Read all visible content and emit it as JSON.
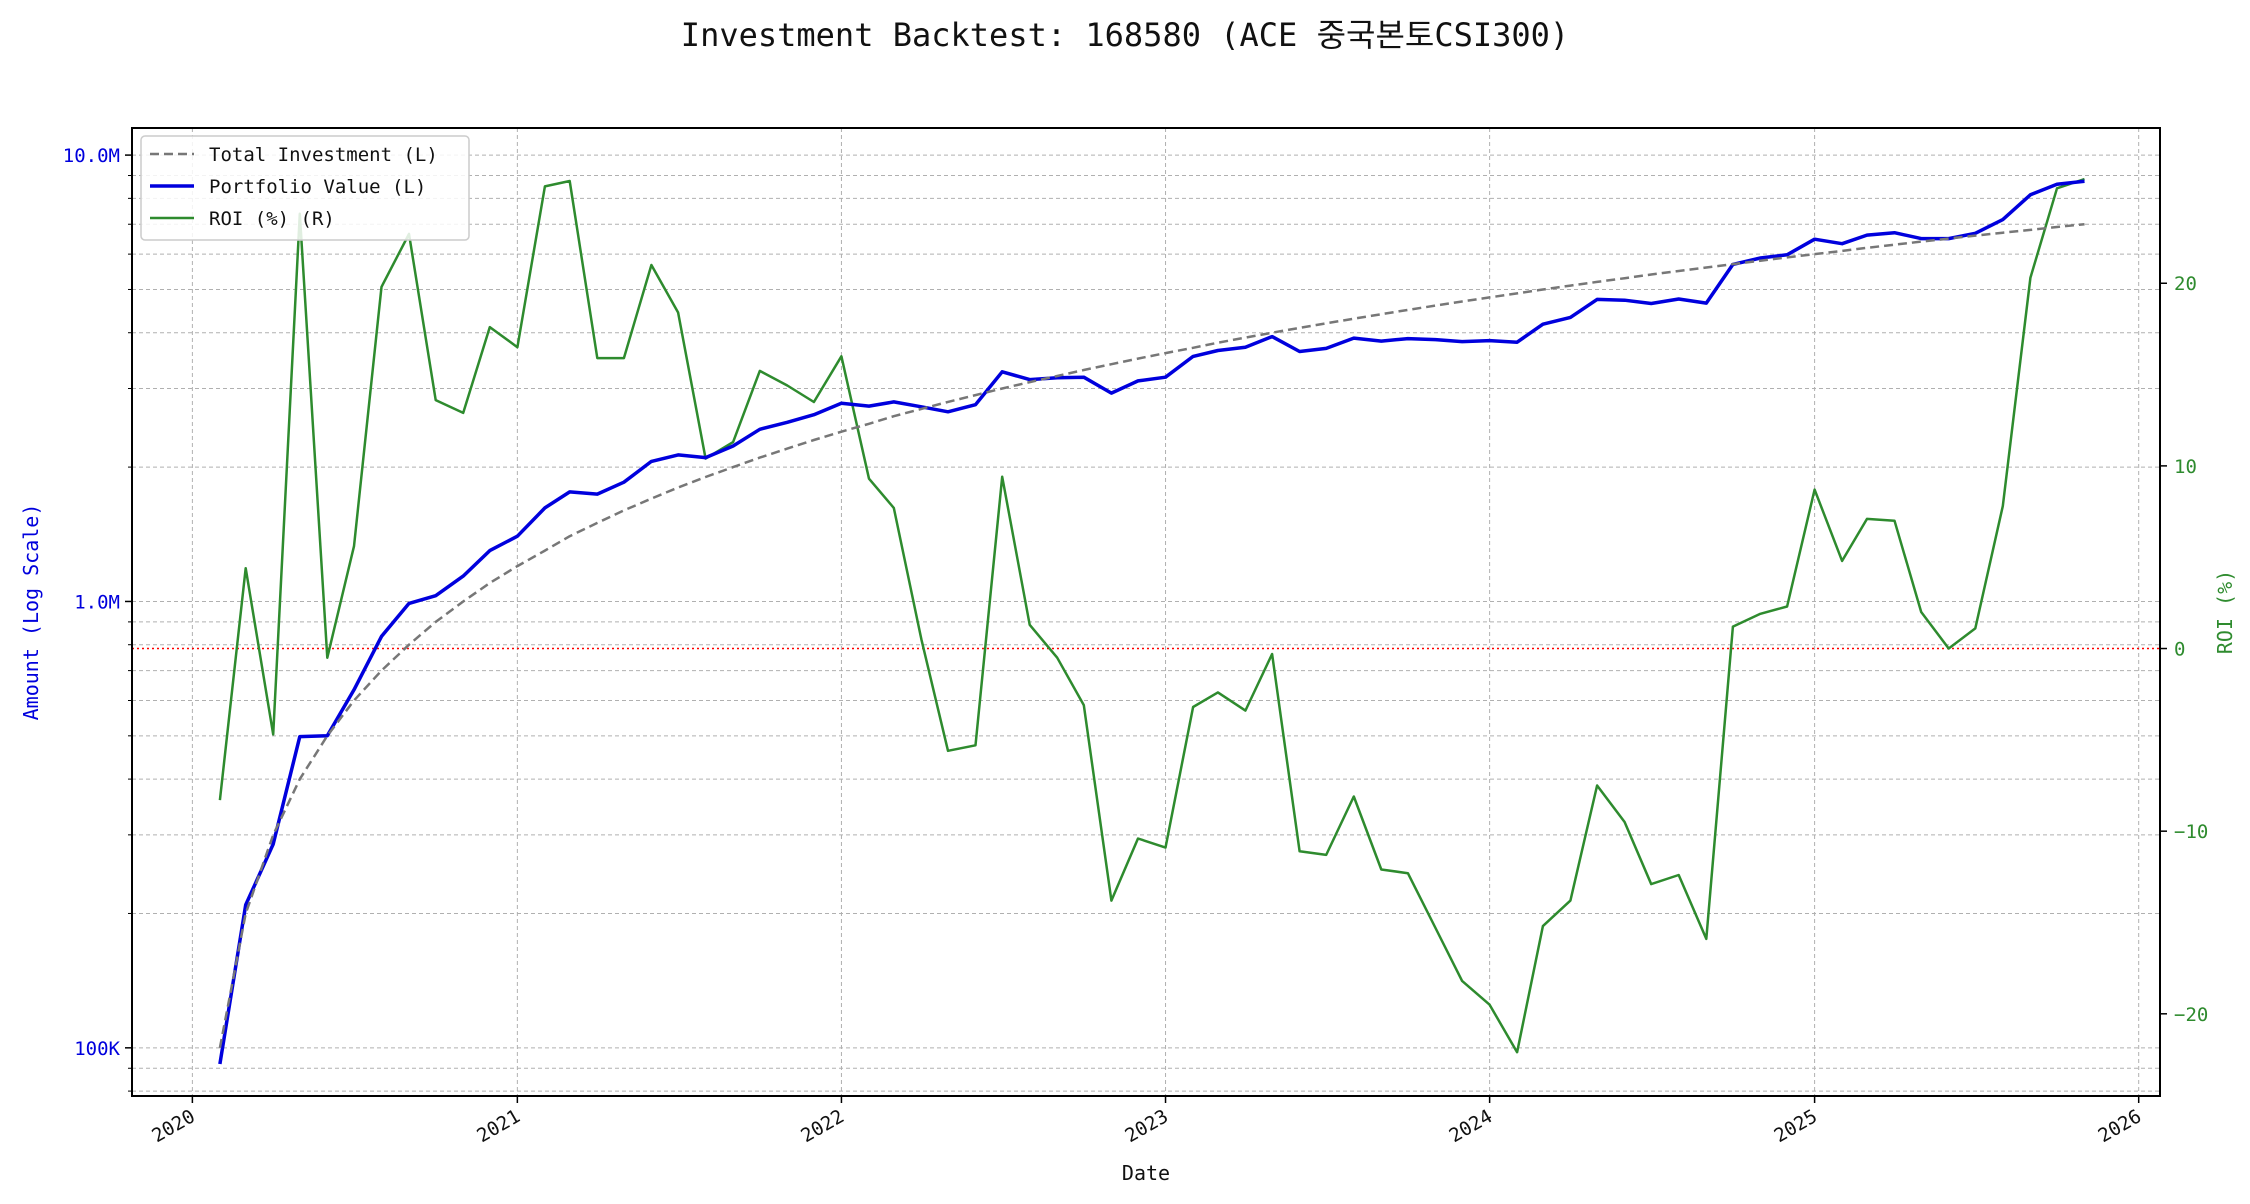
{
  "chart_data": {
    "type": "line",
    "title": "Investment Backtest: 168580 (ACE 중국본토CSI300)",
    "xlabel": "Date",
    "ylabel_left": "Amount (Log Scale)",
    "ylabel_right": "ROI (%)",
    "y_scale_left": "log",
    "ylim_left": [
      78000,
      11500000
    ],
    "ylim_right": [
      -24.5,
      28.5
    ],
    "x_range": [
      "2019-10-25",
      "2026-01-25"
    ],
    "x_ticks": [
      {
        "date": "2020-01-01",
        "label": "2020"
      },
      {
        "date": "2021-01-01",
        "label": "2021"
      },
      {
        "date": "2022-01-01",
        "label": "2022"
      },
      {
        "date": "2023-01-01",
        "label": "2023"
      },
      {
        "date": "2024-01-01",
        "label": "2024"
      },
      {
        "date": "2025-01-01",
        "label": "2025"
      },
      {
        "date": "2026-01-01",
        "label": "2026"
      }
    ],
    "y_ticks_left": [
      {
        "value": 100000,
        "label": "100K"
      },
      {
        "value": 1000000,
        "label": "1.0M"
      },
      {
        "value": 10000000,
        "label": "10.0M"
      }
    ],
    "y_ticks_right": [
      {
        "value": -20,
        "label": "−20"
      },
      {
        "value": -10,
        "label": "−10"
      },
      {
        "value": 0,
        "label": "0"
      },
      {
        "value": 10,
        "label": "10"
      },
      {
        "value": 20,
        "label": "20"
      }
    ],
    "grid": true,
    "legend_position": "top-left",
    "reference_line": {
      "axis": "right",
      "value": 0,
      "color": "#ff0000",
      "style": "dotted"
    },
    "x": [
      "2020-02-01",
      "2020-03-01",
      "2020-04-01",
      "2020-05-01",
      "2020-06-01",
      "2020-07-01",
      "2020-08-01",
      "2020-09-01",
      "2020-10-01",
      "2020-11-01",
      "2020-12-01",
      "2021-01-01",
      "2021-02-01",
      "2021-03-01",
      "2021-04-01",
      "2021-05-01",
      "2021-06-01",
      "2021-07-01",
      "2021-08-01",
      "2021-09-01",
      "2021-10-01",
      "2021-11-01",
      "2021-12-01",
      "2022-01-01",
      "2022-02-01",
      "2022-03-01",
      "2022-04-01",
      "2022-05-01",
      "2022-06-01",
      "2022-07-01",
      "2022-08-01",
      "2022-09-01",
      "2022-10-01",
      "2022-11-01",
      "2022-12-01",
      "2023-01-01",
      "2023-02-01",
      "2023-03-01",
      "2023-04-01",
      "2023-05-01",
      "2023-06-01",
      "2023-07-01",
      "2023-08-01",
      "2023-09-01",
      "2023-10-01",
      "2023-11-01",
      "2023-12-01",
      "2024-01-01",
      "2024-02-01",
      "2024-03-01",
      "2024-04-01",
      "2024-05-01",
      "2024-06-01",
      "2024-07-01",
      "2024-08-01",
      "2024-09-01",
      "2024-10-01",
      "2024-11-01",
      "2024-12-01",
      "2025-01-01",
      "2025-02-01",
      "2025-03-01",
      "2025-04-01",
      "2025-05-01",
      "2025-06-01",
      "2025-07-01",
      "2025-08-01",
      "2025-09-01",
      "2025-10-01",
      "2025-11-01"
    ],
    "series": [
      {
        "name": "Total Investment (L)",
        "axis": "left",
        "color": "#777777",
        "style": "dashed",
        "values": [
          100000,
          200000,
          300000,
          400000,
          500000,
          600000,
          700000,
          800000,
          900000,
          1000000,
          1100000,
          1200000,
          1300000,
          1400000,
          1500000,
          1600000,
          1700000,
          1800000,
          1900000,
          2000000,
          2100000,
          2200000,
          2300000,
          2400000,
          2500000,
          2600000,
          2700000,
          2800000,
          2900000,
          3000000,
          3100000,
          3200000,
          3300000,
          3400000,
          3500000,
          3600000,
          3700000,
          3800000,
          3900000,
          4000000,
          4100000,
          4200000,
          4300000,
          4400000,
          4500000,
          4600000,
          4700000,
          4800000,
          4900000,
          5000000,
          5100000,
          5200000,
          5300000,
          5400000,
          5500000,
          5600000,
          5700000,
          5800000,
          5900000,
          6000000,
          6100000,
          6200000,
          6300000,
          6400000,
          6500000,
          6600000,
          6700000,
          6800000,
          6900000,
          7000000
        ]
      },
      {
        "name": "Portfolio Value (L)",
        "axis": "left",
        "color": "#0000dd",
        "style": "solid",
        "values": [
          92000,
          209000,
          286000,
          498000,
          500000,
          634000,
          835000,
          990000,
          1030000,
          1140000,
          1300000,
          1400000,
          1620000,
          1760000,
          1740000,
          1850000,
          2060000,
          2130000,
          2100000,
          2230000,
          2430000,
          2520000,
          2620000,
          2780000,
          2740000,
          2800000,
          2730000,
          2660000,
          2760000,
          3270000,
          3140000,
          3170000,
          3180000,
          2930000,
          3120000,
          3180000,
          3540000,
          3650000,
          3710000,
          3920000,
          3630000,
          3690000,
          3890000,
          3830000,
          3880000,
          3860000,
          3820000,
          3840000,
          3810000,
          4180000,
          4330000,
          4750000,
          4730000,
          4650000,
          4760000,
          4660000,
          5690000,
          5880000,
          5980000,
          6480000,
          6330000,
          6620000,
          6700000,
          6500000,
          6500000,
          6680000,
          7170000,
          8150000,
          8600000,
          8740000
        ]
      },
      {
        "name": "ROI (%) (R)",
        "axis": "right",
        "color": "#2e8b2e",
        "style": "solid",
        "values": [
          -8.3,
          4.4,
          -4.7,
          23.8,
          -0.5,
          5.6,
          19.8,
          22.7,
          13.6,
          12.9,
          17.6,
          16.5,
          25.3,
          25.6,
          15.9,
          15.9,
          21.0,
          18.4,
          10.4,
          11.3,
          15.2,
          14.4,
          13.5,
          16.0,
          9.3,
          7.7,
          0.5,
          -5.6,
          -5.3,
          9.4,
          1.3,
          -0.5,
          -3.1,
          -13.8,
          -10.4,
          -10.9,
          -3.2,
          -2.4,
          -3.4,
          -0.3,
          -11.1,
          -11.3,
          -8.1,
          -12.1,
          -12.3,
          -15.3,
          -18.2,
          -19.5,
          -22.1,
          -15.2,
          -13.8,
          -7.5,
          -9.5,
          -12.9,
          -12.4,
          -15.9,
          1.2,
          1.9,
          2.3,
          8.7,
          4.8,
          7.1,
          7.0,
          2.0,
          0.0,
          1.1,
          7.8,
          20.3,
          25.2,
          25.7
        ]
      }
    ]
  }
}
